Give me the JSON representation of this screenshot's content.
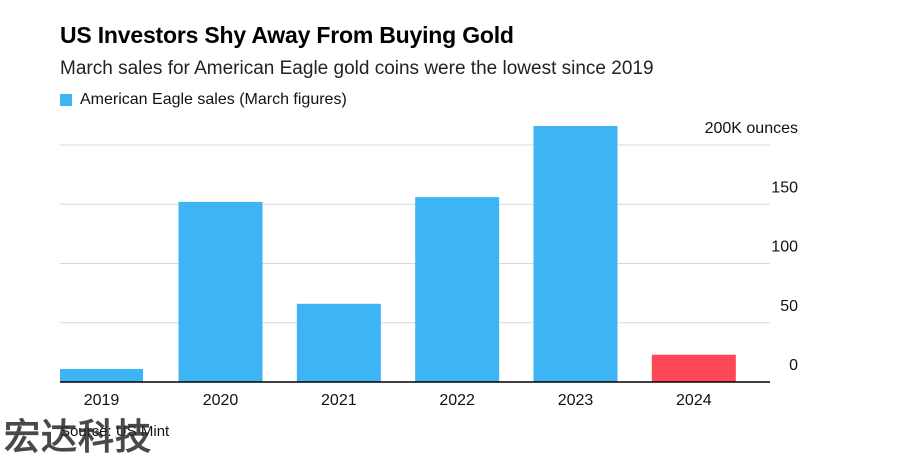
{
  "header": {
    "title": "US Investors Shy Away From Buying Gold",
    "subtitle": "March sales for American Eagle gold coins were the lowest since 2019"
  },
  "footer": {
    "source": "Source: US Mint",
    "watermark": "宏达科技"
  },
  "colors": {
    "bar": "#3db5f5",
    "highlight": "#ff4757",
    "grid": "#d9d9d9",
    "axis": "#000000"
  },
  "chart_data": {
    "type": "bar",
    "categories": [
      "2019",
      "2020",
      "2021",
      "2022",
      "2023",
      "2024"
    ],
    "series": [
      {
        "name": "American Eagle sales (March figures)",
        "values": [
          11,
          152,
          66,
          156,
          216,
          23
        ]
      }
    ],
    "highlight_index": 5,
    "ylim": [
      0,
      200
    ],
    "y_ticks": [
      0,
      50,
      100,
      150,
      200
    ],
    "y_tick_labels": [
      "0",
      "50",
      "100",
      "150",
      "200K ounces"
    ],
    "grid": true,
    "legend_position": "top-left"
  }
}
